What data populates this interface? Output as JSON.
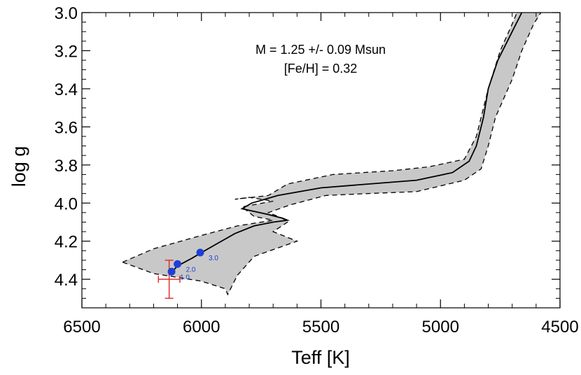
{
  "chart_data": {
    "type": "line",
    "xlabel": "Teff [K]",
    "ylabel": "log g",
    "xlim": [
      6500,
      4500
    ],
    "ylim": [
      3.0,
      4.55
    ],
    "x_inverted": true,
    "y_inverted": true,
    "grid": false,
    "x_ticks": [
      "6500",
      "6000",
      "5500",
      "5000",
      "4500"
    ],
    "y_ticks": [
      "3.0",
      "3.2",
      "3.4",
      "3.6",
      "3.8",
      "4.0",
      "4.2",
      "4.4"
    ],
    "annotations": [
      "M = 1.25 +/- 0.09 Msun",
      "[Fe/H] = 0.32"
    ],
    "colors": {
      "band": "#c8c8c8",
      "track": "#000000",
      "age_marker": "#1f3fd6",
      "observation": "#e03030"
    },
    "series": [
      {
        "role": "track",
        "points": [
          [
            6130,
            4.37
          ],
          [
            6100,
            4.33
          ],
          [
            6040,
            4.29
          ],
          [
            6000,
            4.26
          ],
          [
            5930,
            4.21
          ],
          [
            5860,
            4.16
          ],
          [
            5780,
            4.12
          ],
          [
            5700,
            4.1
          ],
          [
            5640,
            4.09
          ],
          [
            5660,
            4.08
          ],
          [
            5720,
            4.06
          ],
          [
            5830,
            4.03
          ],
          [
            5790,
            4.0
          ],
          [
            5680,
            3.96
          ],
          [
            5500,
            3.92
          ],
          [
            5300,
            3.9
          ],
          [
            5100,
            3.88
          ],
          [
            4950,
            3.84
          ],
          [
            4880,
            3.78
          ],
          [
            4850,
            3.7
          ],
          [
            4820,
            3.55
          ],
          [
            4800,
            3.4
          ],
          [
            4760,
            3.25
          ],
          [
            4700,
            3.1
          ],
          [
            4660,
            3.0
          ]
        ]
      },
      {
        "role": "upper_bound",
        "points": [
          [
            6330,
            4.31
          ],
          [
            6200,
            4.24
          ],
          [
            6000,
            4.17
          ],
          [
            5850,
            4.12
          ],
          [
            5700,
            4.09
          ],
          [
            5780,
            4.07
          ],
          [
            5830,
            4.02
          ],
          [
            5700,
            3.99
          ],
          [
            5800,
            3.97
          ],
          [
            5860,
            3.98
          ],
          [
            5720,
            3.96
          ],
          [
            5640,
            3.9
          ],
          [
            5450,
            3.85
          ],
          [
            5200,
            3.83
          ],
          [
            5050,
            3.81
          ],
          [
            4900,
            3.77
          ],
          [
            4850,
            3.65
          ],
          [
            4800,
            3.4
          ],
          [
            4750,
            3.2
          ],
          [
            4700,
            3.06
          ],
          [
            4680,
            3.0
          ]
        ]
      },
      {
        "role": "lower_bound",
        "points": [
          [
            6330,
            4.31
          ],
          [
            6200,
            4.37
          ],
          [
            6000,
            4.41
          ],
          [
            5900,
            4.45
          ],
          [
            5890,
            4.48
          ],
          [
            5850,
            4.38
          ],
          [
            5780,
            4.28
          ],
          [
            5600,
            4.2
          ],
          [
            5700,
            4.15
          ],
          [
            5640,
            4.1
          ],
          [
            5660,
            4.08
          ],
          [
            5720,
            4.05
          ],
          [
            5630,
            4.01
          ],
          [
            5480,
            3.96
          ],
          [
            5300,
            3.95
          ],
          [
            5100,
            3.94
          ],
          [
            4900,
            3.88
          ],
          [
            4830,
            3.82
          ],
          [
            4800,
            3.7
          ],
          [
            4770,
            3.55
          ],
          [
            4700,
            3.35
          ],
          [
            4660,
            3.2
          ],
          [
            4610,
            3.06
          ],
          [
            4580,
            3.0
          ]
        ]
      }
    ],
    "age_markers": [
      {
        "label": "1.0",
        "teff": 6125,
        "logg": 4.36
      },
      {
        "label": "2.0",
        "teff": 6100,
        "logg": 4.32
      },
      {
        "label": "3.0",
        "teff": 6005,
        "logg": 4.26
      }
    ],
    "observation": {
      "teff": 6135,
      "logg": 4.4,
      "teff_err": 45,
      "logg_err": 0.1
    }
  }
}
